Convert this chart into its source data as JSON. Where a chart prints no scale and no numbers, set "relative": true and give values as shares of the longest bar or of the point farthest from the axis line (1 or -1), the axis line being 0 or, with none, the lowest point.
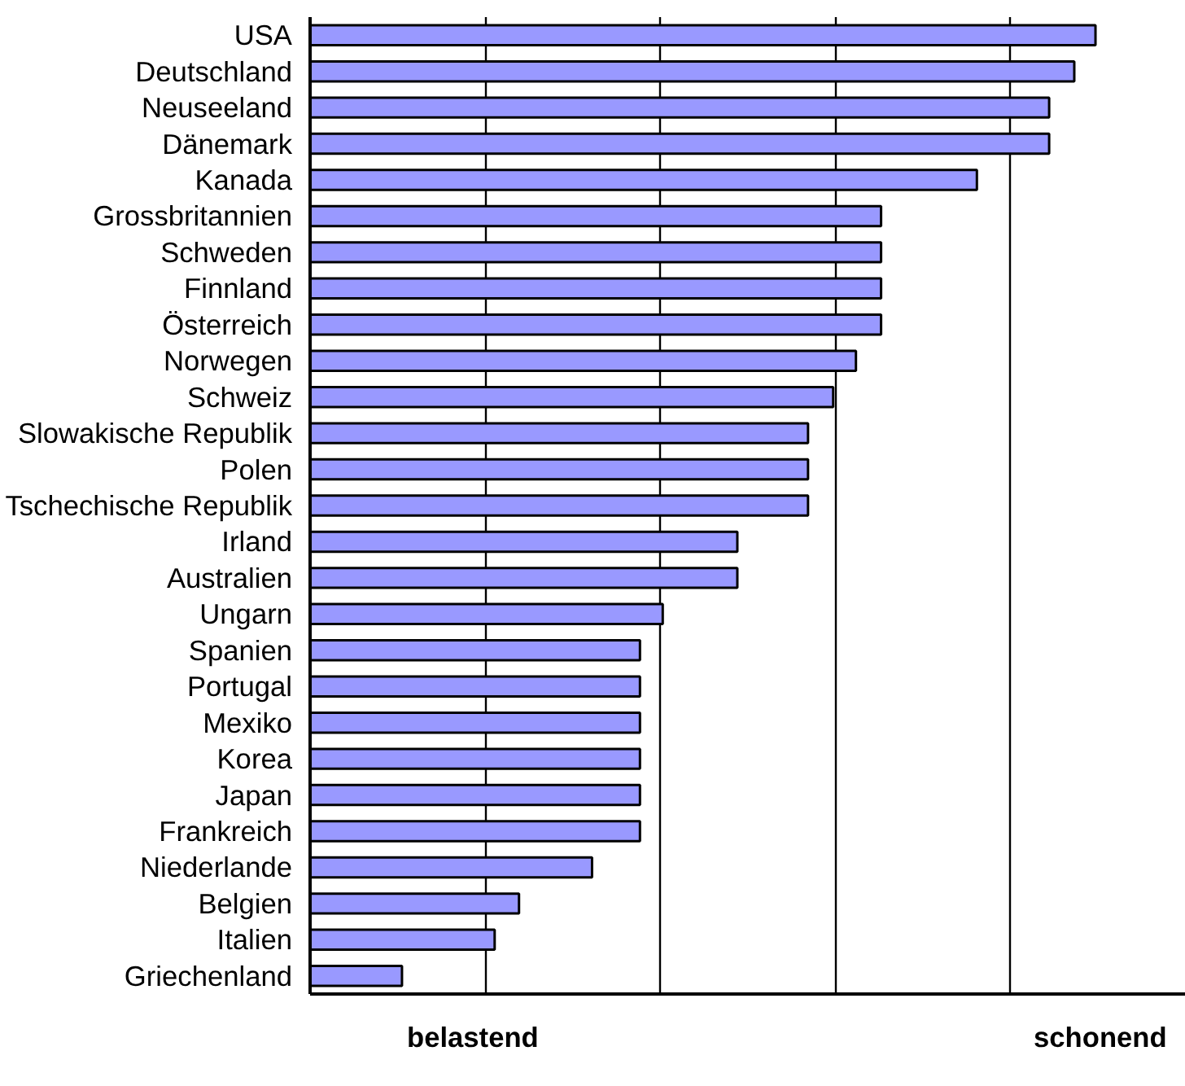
{
  "chart_data": {
    "type": "bar",
    "orientation": "horizontal",
    "relative": true,
    "grid": "x",
    "color": "#9999ff",
    "categories": [
      "USA",
      "Deutschland",
      "Neuseeland",
      "Dänemark",
      "Kanada",
      "Grossbritannien",
      "Schweden",
      "Finnland",
      "Österreich",
      "Norwegen",
      "Schweiz",
      "Slowakische Republik",
      "Polen",
      "Tschechische Republik",
      "Irland",
      "Australien",
      "Ungarn",
      "Spanien",
      "Portugal",
      "Mexiko",
      "Korea",
      "Japan",
      "Frankreich",
      "Niederlande",
      "Belgien",
      "Italien",
      "Griechenland"
    ],
    "values": [
      1,
      0.973,
      0.941,
      0.941,
      0.849,
      0.727,
      0.727,
      0.727,
      0.727,
      0.695,
      0.666,
      0.634,
      0.634,
      0.634,
      0.544,
      0.544,
      0.449,
      0.42,
      0.42,
      0.42,
      0.42,
      0.42,
      0.42,
      0.359,
      0.266,
      0.235,
      0.117
    ],
    "annotations": [
      "belastend",
      "schonend"
    ]
  }
}
